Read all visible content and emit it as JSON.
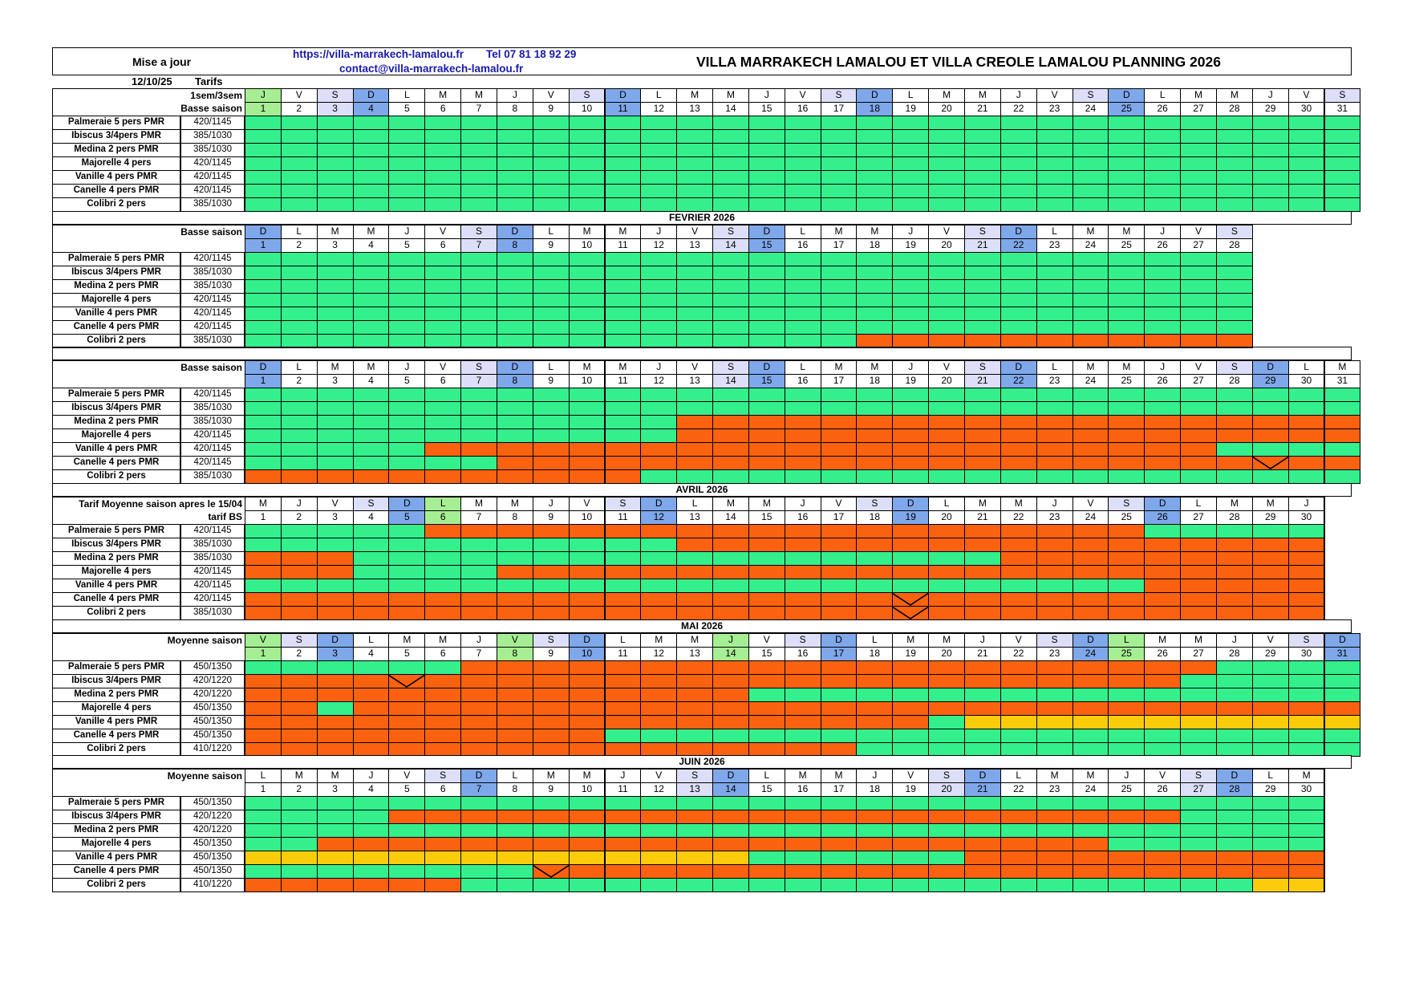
{
  "header": {
    "update_label": "Mise a jour",
    "update_date": "12/10/25",
    "tarifs_label": "Tarifs",
    "website": "https://villa-marrakech-lamalou.fr",
    "phone": "Tel 07 81 18 92 29",
    "email": "contact@villa-marrakech-lamalou.fr",
    "title": "VILLA MARRAKECH LAMALOU ET VILLA CREOLE LAMALOU PLANNING 2026"
  },
  "colors": {
    "free": "#33f08c",
    "booked": "#fa6210",
    "option": "#fccc0c",
    "sunday": "#7fa8ea",
    "saturday": "#dcdff7",
    "holiday": "#a6ee93"
  },
  "legend_codes": {
    "G": "free",
    "O": "booked",
    "Y": "option"
  },
  "months": [
    {
      "id": "janvier",
      "month_title": "",
      "season_top": "1sem/3sem",
      "season_bottom": "Basse saison",
      "days_count": 31,
      "weekdays": [
        "J",
        "V",
        "S",
        "D",
        "L",
        "M",
        "M",
        "J",
        "V",
        "S",
        "D",
        "L",
        "M",
        "M",
        "J",
        "V",
        "S",
        "D",
        "L",
        "M",
        "M",
        "J",
        "V",
        "S",
        "D",
        "L",
        "M",
        "M",
        "J",
        "V",
        "S"
      ],
      "wd_hl": [
        "H",
        "",
        "A",
        "U",
        "",
        "",
        "",
        "",
        "",
        "A",
        "U",
        "",
        "",
        "",
        "",
        "",
        "A",
        "U",
        "",
        "",
        "",
        "",
        "",
        "A",
        "U",
        "",
        "",
        "",
        "",
        "",
        "A"
      ],
      "num_hl": [
        "H",
        "",
        "A",
        "U",
        "",
        "",
        "",
        "",
        "",
        "",
        "U",
        "",
        "",
        "",
        "",
        "",
        "",
        "U",
        "",
        "",
        "",
        "",
        "",
        "",
        "U",
        "",
        "",
        "",
        "",
        "",
        ""
      ],
      "villas": [
        {
          "name": "Palmeraie 5 pers PMR",
          "rate": "420/1145",
          "states": [
            "G31"
          ],
          "checkins": []
        },
        {
          "name": "Ibiscus 3/4pers PMR",
          "rate": "385/1030",
          "states": [
            "G31"
          ],
          "checkins": []
        },
        {
          "name": "Medina 2 pers PMR",
          "rate": "385/1030",
          "states": [
            "G31"
          ],
          "checkins": []
        },
        {
          "name": "Majorelle 4 pers",
          "rate": "420/1145",
          "states": [
            "G31"
          ],
          "checkins": []
        },
        {
          "name": "Vanille 4 pers PMR",
          "rate": "420/1145",
          "states": [
            "G31"
          ],
          "checkins": []
        },
        {
          "name": "Canelle 4 pers PMR",
          "rate": "420/1145",
          "states": [
            "G31"
          ],
          "checkins": []
        },
        {
          "name": "Colibri 2 pers",
          "rate": "385/1030",
          "states": [
            "G31"
          ],
          "checkins": []
        }
      ]
    },
    {
      "id": "fevrier",
      "month_title": "FEVRIER 2026",
      "season_top": "Basse saison",
      "season_bottom": "",
      "days_count": 28,
      "weekdays": [
        "D",
        "L",
        "M",
        "M",
        "J",
        "V",
        "S",
        "D",
        "L",
        "M",
        "M",
        "J",
        "V",
        "S",
        "D",
        "L",
        "M",
        "M",
        "J",
        "V",
        "S",
        "D",
        "L",
        "M",
        "M",
        "J",
        "V",
        "S"
      ],
      "wd_hl": [
        "U",
        "",
        "",
        "",
        "",
        "",
        "A",
        "U",
        "",
        "",
        "",
        "",
        "",
        "A",
        "U",
        "",
        "",
        "",
        "",
        "",
        "A",
        "U",
        "",
        "",
        "",
        "",
        "",
        "A"
      ],
      "num_hl": [
        "U",
        "",
        "",
        "",
        "",
        "",
        "A",
        "U",
        "",
        "",
        "",
        "",
        "",
        "A",
        "U",
        "",
        "",
        "",
        "",
        "",
        "A",
        "U",
        "",
        "",
        "",
        "",
        "",
        ""
      ],
      "villas": [
        {
          "name": "Palmeraie 5 pers PMR",
          "rate": "420/1145",
          "states": [
            "G28"
          ],
          "checkins": []
        },
        {
          "name": "Ibiscus 3/4pers PMR",
          "rate": "385/1030",
          "states": [
            "G28"
          ],
          "checkins": []
        },
        {
          "name": "Medina 2 pers PMR",
          "rate": "385/1030",
          "states": [
            "G28"
          ],
          "checkins": []
        },
        {
          "name": "Majorelle 4 pers",
          "rate": "420/1145",
          "states": [
            "G28"
          ],
          "checkins": []
        },
        {
          "name": "Vanille 4 pers PMR",
          "rate": "420/1145",
          "states": [
            "G28"
          ],
          "checkins": []
        },
        {
          "name": "Canelle 4 pers PMR",
          "rate": "420/1145",
          "states": [
            "G28"
          ],
          "checkins": []
        },
        {
          "name": "Colibri 2 pers",
          "rate": "385/1030",
          "states": [
            "G17",
            "O11"
          ],
          "checkins": []
        }
      ]
    },
    {
      "id": "mars",
      "month_title": "",
      "season_top": "Basse saison",
      "season_bottom": "",
      "days_count": 31,
      "weekdays": [
        "D",
        "L",
        "M",
        "M",
        "J",
        "V",
        "S",
        "D",
        "L",
        "M",
        "M",
        "J",
        "V",
        "S",
        "D",
        "L",
        "M",
        "M",
        "J",
        "V",
        "S",
        "D",
        "L",
        "M",
        "M",
        "J",
        "V",
        "S",
        "D",
        "L",
        "M"
      ],
      "wd_hl": [
        "U",
        "",
        "",
        "",
        "",
        "",
        "A",
        "U",
        "",
        "",
        "",
        "",
        "",
        "A",
        "U",
        "",
        "",
        "",
        "",
        "",
        "A",
        "U",
        "",
        "",
        "",
        "",
        "",
        "A",
        "U",
        "",
        ""
      ],
      "num_hl": [
        "U",
        "",
        "",
        "",
        "",
        "",
        "A",
        "U",
        "",
        "",
        "",
        "",
        "",
        "A",
        "U",
        "",
        "",
        "",
        "",
        "",
        "A",
        "U",
        "",
        "",
        "",
        "",
        "",
        "",
        "U",
        "",
        ""
      ],
      "villas": [
        {
          "name": "Palmeraie 5 pers PMR",
          "rate": "420/1145",
          "states": [
            "G31"
          ],
          "checkins": []
        },
        {
          "name": "Ibiscus 3/4pers PMR",
          "rate": "385/1030",
          "states": [
            "G31"
          ],
          "checkins": []
        },
        {
          "name": "Medina 2 pers PMR",
          "rate": "385/1030",
          "states": [
            "G12",
            "O19"
          ],
          "checkins": []
        },
        {
          "name": "Majorelle 4 pers",
          "rate": "420/1145",
          "states": [
            "G12",
            "O19"
          ],
          "checkins": []
        },
        {
          "name": "Vanille 4 pers PMR",
          "rate": "420/1145",
          "states": [
            "G5",
            "O22",
            "G4"
          ],
          "checkins": []
        },
        {
          "name": "Canelle 4 pers PMR",
          "rate": "420/1145",
          "states": [
            "G7",
            "O24"
          ],
          "checkins": [
            29
          ]
        },
        {
          "name": "Colibri 2 pers",
          "rate": "385/1030",
          "states": [
            "O11",
            "G20"
          ],
          "checkins": []
        }
      ]
    },
    {
      "id": "avril",
      "month_title": "AVRIL 2026",
      "season_top": "Tarif Moyenne saison apres le 15/04",
      "season_bottom": "tarif BS",
      "days_count": 30,
      "weekdays": [
        "M",
        "J",
        "V",
        "S",
        "D",
        "L",
        "M",
        "M",
        "J",
        "V",
        "S",
        "D",
        "L",
        "M",
        "M",
        "J",
        "V",
        "S",
        "D",
        "L",
        "M",
        "M",
        "J",
        "V",
        "S",
        "D",
        "L",
        "M",
        "M",
        "J"
      ],
      "wd_hl": [
        "",
        "",
        "",
        "A",
        "U",
        "H",
        "",
        "",
        "",
        "",
        "A",
        "U",
        "",
        "",
        "",
        "",
        "",
        "A",
        "U",
        "",
        "",
        "",
        "",
        "",
        "A",
        "U",
        "",
        "",
        "",
        ""
      ],
      "num_hl": [
        "",
        "",
        "",
        "",
        "U",
        "H",
        "",
        "",
        "",
        "",
        "",
        "U",
        "",
        "",
        "",
        "",
        "",
        "",
        "U",
        "",
        "",
        "",
        "",
        "",
        "",
        "U",
        "",
        "",
        "",
        ""
      ],
      "villas": [
        {
          "name": "Palmeraie 5 pers PMR",
          "rate": "420/1145",
          "states": [
            "G5",
            "O20",
            "G5"
          ],
          "checkins": []
        },
        {
          "name": "Ibiscus 3/4pers PMR",
          "rate": "385/1030",
          "states": [
            "G12",
            "O18"
          ],
          "checkins": []
        },
        {
          "name": "Medina 2 pers PMR",
          "rate": "385/1030",
          "states": [
            "O3",
            "G18",
            "O9"
          ],
          "checkins": []
        },
        {
          "name": "Majorelle 4 pers",
          "rate": "420/1145",
          "states": [
            "O3",
            "G4",
            "O23"
          ],
          "checkins": []
        },
        {
          "name": "Vanille 4 pers PMR",
          "rate": "420/1145",
          "states": [
            "G25",
            "O5"
          ],
          "checkins": []
        },
        {
          "name": "Canelle 4 pers PMR",
          "rate": "420/1145",
          "states": [
            "O30"
          ],
          "checkins": [
            19
          ]
        },
        {
          "name": "Colibri 2 pers",
          "rate": "385/1030",
          "states": [
            "O30"
          ],
          "checkins": [
            19
          ]
        }
      ]
    },
    {
      "id": "mai",
      "month_title": "MAI 2026",
      "season_top": "Moyenne saison",
      "season_bottom": "",
      "days_count": 31,
      "weekdays": [
        "V",
        "S",
        "D",
        "L",
        "M",
        "M",
        "J",
        "V",
        "S",
        "D",
        "L",
        "M",
        "M",
        "J",
        "V",
        "S",
        "D",
        "L",
        "M",
        "M",
        "J",
        "V",
        "S",
        "D",
        "L",
        "M",
        "M",
        "J",
        "V",
        "S",
        "D"
      ],
      "wd_hl": [
        "H",
        "A",
        "U",
        "",
        "",
        "",
        "",
        "H",
        "A",
        "U",
        "",
        "",
        "",
        "H",
        "",
        "A",
        "U",
        "",
        "",
        "",
        "",
        "",
        "A",
        "U",
        "H",
        "",
        "",
        "",
        "",
        "A",
        "U"
      ],
      "num_hl": [
        "H",
        "",
        "U",
        "",
        "",
        "",
        "",
        "H",
        "",
        "U",
        "",
        "",
        "",
        "H",
        "",
        "",
        "U",
        "",
        "",
        "",
        "",
        "",
        "",
        "U",
        "H",
        "",
        "",
        "",
        "",
        "",
        "U"
      ],
      "villas": [
        {
          "name": "Palmeraie 5 pers PMR",
          "rate": "450/1350",
          "states": [
            "G6",
            "O21",
            "G4"
          ],
          "checkins": []
        },
        {
          "name": "Ibiscus 3/4pers PMR",
          "rate": "420/1220",
          "states": [
            "O26",
            "G5"
          ],
          "checkins": [
            5
          ]
        },
        {
          "name": "Medina 2 pers PMR",
          "rate": "420/1220",
          "states": [
            "O14",
            "G17"
          ],
          "checkins": []
        },
        {
          "name": "Majorelle 4 pers",
          "rate": "450/1350",
          "states": [
            "O2",
            "G1",
            "O28"
          ],
          "checkins": []
        },
        {
          "name": "Vanille 4 pers PMR",
          "rate": "450/1350",
          "states": [
            "O19",
            "G1",
            "Y11"
          ],
          "checkins": []
        },
        {
          "name": "Canelle 4 pers PMR",
          "rate": "450/1350",
          "states": [
            "O10",
            "G21"
          ],
          "checkins": []
        },
        {
          "name": "Colibri 2 pers",
          "rate": "410/1220",
          "states": [
            "O17",
            "G14"
          ],
          "checkins": []
        }
      ]
    },
    {
      "id": "juin",
      "month_title": "JUIN 2026",
      "season_top": "Moyenne saison",
      "season_bottom": "",
      "days_count": 30,
      "weekdays": [
        "L",
        "M",
        "M",
        "J",
        "V",
        "S",
        "D",
        "L",
        "M",
        "M",
        "J",
        "V",
        "S",
        "D",
        "L",
        "M",
        "M",
        "J",
        "V",
        "S",
        "D",
        "L",
        "M",
        "M",
        "J",
        "V",
        "S",
        "D",
        "L",
        "M"
      ],
      "wd_hl": [
        "",
        "",
        "",
        "",
        "",
        "A",
        "U",
        "",
        "",
        "",
        "",
        "",
        "A",
        "U",
        "",
        "",
        "",
        "",
        "",
        "A",
        "U",
        "",
        "",
        "",
        "",
        "",
        "A",
        "U",
        "",
        ""
      ],
      "num_hl": [
        "",
        "",
        "",
        "",
        "",
        "",
        "U",
        "",
        "",
        "",
        "",
        "",
        "A",
        "U",
        "",
        "",
        "",
        "",
        "",
        "A",
        "U",
        "",
        "",
        "",
        "",
        "",
        "A",
        "U",
        "",
        ""
      ],
      "villas": [
        {
          "name": "Palmeraie 5 pers PMR",
          "rate": "450/1350",
          "states": [
            "G30"
          ],
          "checkins": []
        },
        {
          "name": "Ibiscus 3/4pers PMR",
          "rate": "420/1220",
          "states": [
            "G4",
            "O22",
            "G4"
          ],
          "checkins": []
        },
        {
          "name": "Medina 2 pers PMR",
          "rate": "420/1220",
          "states": [
            "G30"
          ],
          "checkins": []
        },
        {
          "name": "Majorelle 4 pers",
          "rate": "450/1350",
          "states": [
            "G2",
            "O22",
            "G6"
          ],
          "checkins": []
        },
        {
          "name": "Vanille 4 pers PMR",
          "rate": "450/1350",
          "states": [
            "Y14",
            "G6",
            "O10"
          ],
          "checkins": []
        },
        {
          "name": "Canelle 4 pers PMR",
          "rate": "450/1350",
          "states": [
            "G8",
            "O22"
          ],
          "checkins": [
            9
          ]
        },
        {
          "name": "Colibri 2 pers",
          "rate": "410/1220",
          "states": [
            "O6",
            "G22",
            "Y2"
          ],
          "checkins": []
        }
      ]
    }
  ]
}
